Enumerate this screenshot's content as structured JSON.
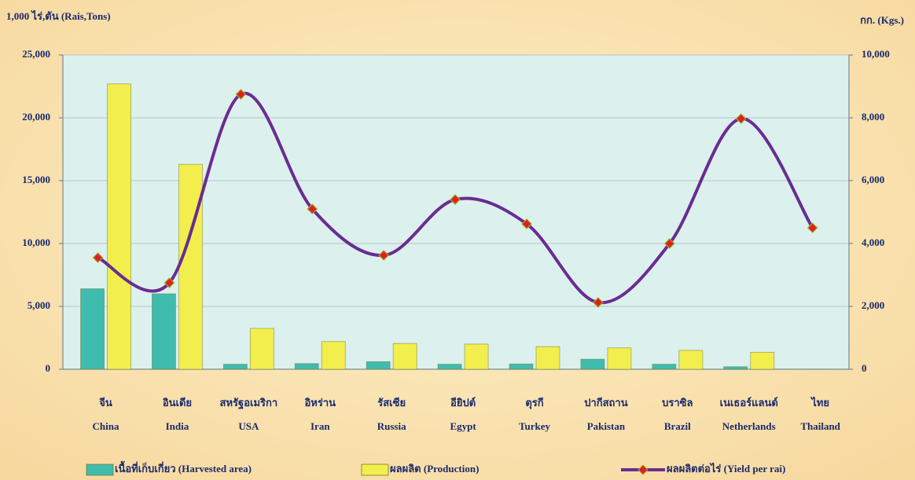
{
  "chart_data": {
    "type": "bar_line",
    "y_label": "1,000 ไร่,ตัน (Rais,Tons)",
    "y2_label": "กก. (Kgs.)",
    "categories": [
      [
        "จีน",
        "China"
      ],
      [
        "อินเดีย",
        "India"
      ],
      [
        "สหรัฐอเมริกา",
        "USA"
      ],
      [
        "อิหร่าน",
        "Iran"
      ],
      [
        "รัสเซีย",
        "Russia"
      ],
      [
        "อียิปต์",
        "Egypt"
      ],
      [
        "ตุรกี",
        "Turkey"
      ],
      [
        "ปากีสถาน",
        "Pakistan"
      ],
      [
        "บราซิล",
        "Brazil"
      ],
      [
        "เนเธอร์แลนด์",
        "Netherlands"
      ],
      [
        "ไทย",
        "Thailand"
      ]
    ],
    "series": [
      {
        "name": "เนื้อที่เก็บเกี่ยว (Harvested area)",
        "type": "bar",
        "color": "#3fbcae",
        "values": [
          6400,
          6000,
          400,
          450,
          600,
          400,
          420,
          800,
          400,
          200,
          0
        ]
      },
      {
        "name": "ผลผลิต (Production)",
        "type": "bar",
        "color": "#f2ee4e",
        "values": [
          22700,
          16300,
          3250,
          2200,
          2050,
          2000,
          1800,
          1700,
          1500,
          1350,
          0
        ]
      },
      {
        "name": "ผลผลิตต่อไร่ (Yield per rai)",
        "type": "line",
        "axis": "y2",
        "color": "#6a2c91",
        "marker_color": "#e02020",
        "values": [
          3550,
          2750,
          8750,
          5100,
          3625,
          5400,
          4625,
          2125,
          4000,
          7975,
          4500
        ]
      }
    ],
    "ylim": [
      0,
      25000
    ],
    "yticks": [
      0,
      {
        "value": 5000,
        "label": "5,000"
      },
      {
        "value": 10000,
        "label": "10,000"
      },
      {
        "value": 15000,
        "label": "15,000"
      },
      {
        "value": 20000,
        "label": "20,000"
      },
      {
        "value": 25000,
        "label": "25,000"
      }
    ],
    "y2lim": [
      0,
      10000
    ],
    "y2ticks": [
      0,
      {
        "value": 2000,
        "label": "2,000"
      },
      {
        "value": 4000,
        "label": "4,000"
      },
      {
        "value": 6000,
        "label": "6,000"
      },
      {
        "value": 8000,
        "label": "8,000"
      },
      {
        "value": 10000,
        "label": "10,000"
      }
    ],
    "grid": true
  }
}
